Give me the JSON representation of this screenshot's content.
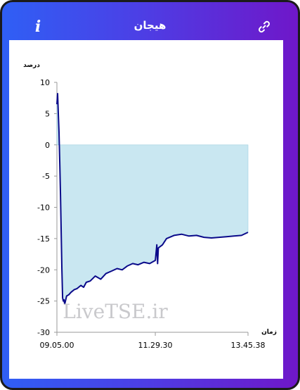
{
  "header": {
    "title": "هیجان",
    "info_icon": "info-icon",
    "link_icon": "link-icon"
  },
  "watermark": "LiveTSE.ir",
  "colors": {
    "line": "#0a0a8a",
    "fill": "#c9e7f1",
    "frame_start": "#2f5ff5",
    "frame_end": "#6f17c9"
  },
  "chart_data": {
    "type": "area",
    "ylabel": "درصد",
    "xlabel": "زمان",
    "ylim": [
      -30,
      10
    ],
    "y_ticks": [
      "10",
      "5",
      "0",
      "-5",
      "-10",
      "-15",
      "-20",
      "-25",
      "-30"
    ],
    "x_tick_labels": [
      "09.05.00",
      "11.29.30",
      "13.45.38"
    ],
    "xlim": [
      "09.05.00",
      "13.45.38"
    ],
    "baseline": 0,
    "series": [
      {
        "x": [
          "09.05.00",
          "09.06.03",
          "09.07.05",
          "09.08.08",
          "09.09.11",
          "09.10.13",
          "09.11.16",
          "09.12.19",
          "09.13.21",
          "09.14.24",
          "09.15.27",
          "09.16.29",
          "09.19.17",
          "09.22.22",
          "09.25.42",
          "09.30.11",
          "09.34.38",
          "09.40.18",
          "09.44.11",
          "09.48.06",
          "09.53.53",
          "10.01.22",
          "10.09.20",
          "10.17.04",
          "10.25.24",
          "10.33.20",
          "10.40.51",
          "10.48.15",
          "10.56.17",
          "11.04.09",
          "11.12.50",
          "11.21.13",
          "11.29.30",
          "11.31.40",
          "11.32.50",
          "11.34.00",
          "11.40.00",
          "11.46.00",
          "11.57.00",
          "12.08.00",
          "12.19.00",
          "12.30.00",
          "12.41.00",
          "12.52.00",
          "13.03.00",
          "13.14.00",
          "13.25.00",
          "13.36.00",
          "13.45.38"
        ],
        "y": [
          6.5,
          8.2,
          5.0,
          2.0,
          -3.0,
          -8.0,
          -14.0,
          -20.0,
          -24.5,
          -25.0,
          -24.8,
          -25.5,
          -24.2,
          -24.0,
          -23.6,
          -23.2,
          -23.0,
          -22.5,
          -22.8,
          -22.0,
          -21.8,
          -21.0,
          -21.5,
          -20.6,
          -20.2,
          -19.8,
          -20.0,
          -19.4,
          -19.0,
          -19.2,
          -18.8,
          -19.0,
          -18.5,
          -16.0,
          -19.0,
          -16.5,
          -16.0,
          -15.0,
          -14.5,
          -14.3,
          -14.6,
          -14.5,
          -14.8,
          -14.9,
          -14.8,
          -14.7,
          -14.6,
          -14.5,
          -14.0
        ]
      }
    ]
  }
}
